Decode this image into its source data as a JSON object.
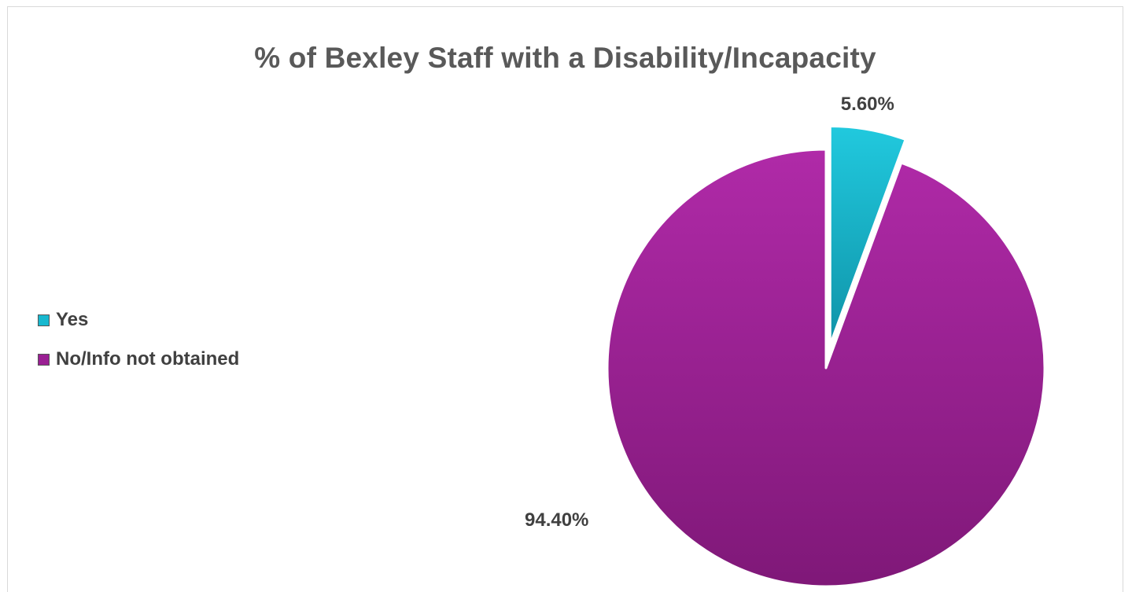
{
  "chart_data": {
    "type": "pie",
    "title": "% of Bexley Staff with a Disability/Incapacity",
    "categories": [
      "Yes",
      "No/Info not obtained"
    ],
    "values": [
      5.6,
      94.4
    ],
    "data_labels": [
      "5.60%",
      "94.40%"
    ],
    "colors": [
      "#18b8cf",
      "#9a1f93"
    ],
    "legend_position": "left",
    "exploded_slice": "Yes"
  },
  "legend": {
    "items": [
      {
        "label": "Yes",
        "color": "#18b8cf"
      },
      {
        "label": "No/Info not obtained",
        "color": "#9a1f93"
      }
    ]
  }
}
